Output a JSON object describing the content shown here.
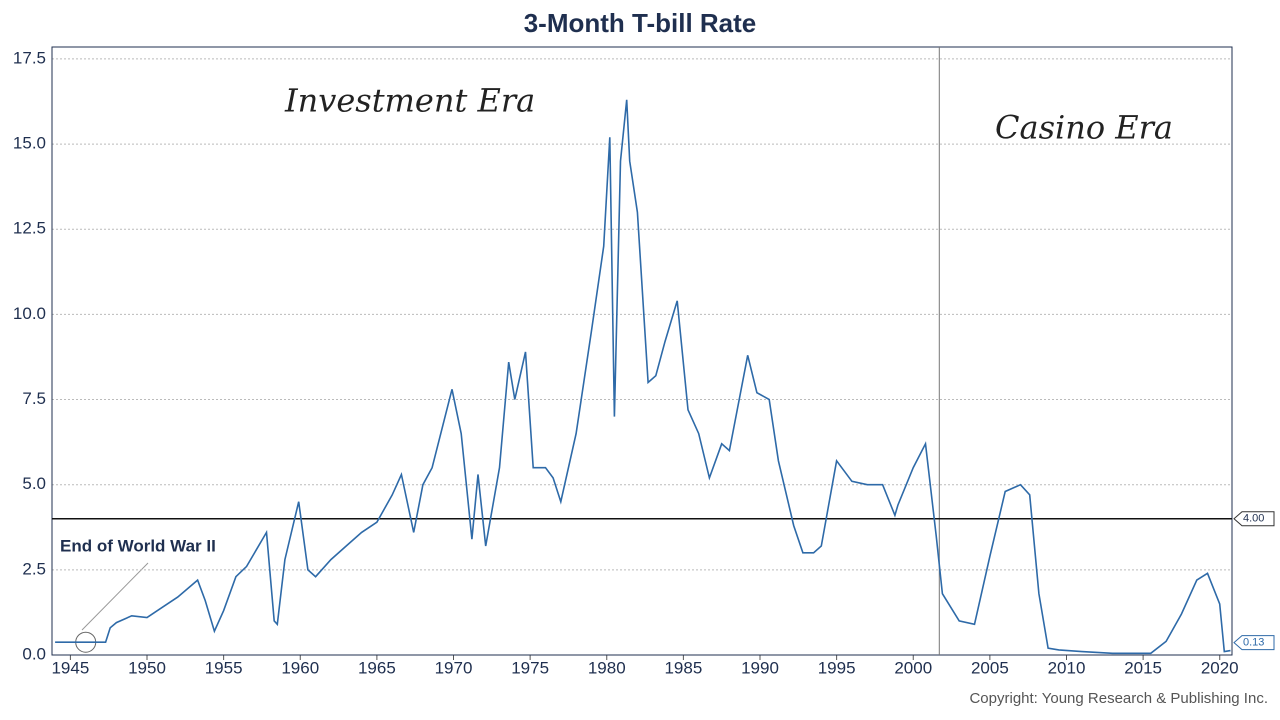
{
  "chart_data": {
    "type": "line",
    "title": "3-Month T-bill Rate",
    "annotations": [
      "Investment Era",
      "Casino Era",
      "End of World War II"
    ],
    "copyright": "Copyright: Young Research & Publishing Inc.",
    "xlim": [
      1943.8,
      2020.8
    ],
    "ylim": [
      0,
      17.85
    ],
    "xticks": [
      1945,
      1950,
      1955,
      1960,
      1965,
      1970,
      1975,
      1980,
      1985,
      1990,
      1995,
      2000,
      2005,
      2010,
      2015,
      2020
    ],
    "yticks": [
      {
        "value": 0,
        "label": "0.0"
      },
      2.5,
      {
        "value": 5,
        "label": "5.0"
      },
      7.5,
      {
        "value": 10,
        "label": "10.0"
      },
      12.5,
      {
        "value": 15,
        "label": "15.0"
      },
      17.5
    ],
    "grid": true,
    "reference_line": {
      "value": 4,
      "label": "4.00"
    },
    "divider_x": 2001.7,
    "event_x": 1946,
    "x": [
      1944.0,
      1947.3,
      1947.6,
      1948,
      1949,
      1950,
      1951,
      1952,
      1953.3,
      1953.8,
      1954.4,
      1955,
      1955.8,
      1956.5,
      1957.8,
      1958.3,
      1958.5,
      1959,
      1959.9,
      1960.5,
      1961,
      1962,
      1963,
      1964,
      1965,
      1966,
      1966.6,
      1967.4,
      1968,
      1968.6,
      1969.9,
      1970.5,
      1971.2,
      1971.6,
      1972.1,
      1973,
      1973.6,
      1974,
      1974.7,
      1975.2,
      1976,
      1976.5,
      1977,
      1978,
      1979,
      1979.8,
      1980.2,
      1980.5,
      1980.9,
      1981.3,
      1981.5,
      1982,
      1982.7,
      1983.2,
      1983.8,
      1984.6,
      1985.3,
      1986,
      1986.7,
      1987.5,
      1988,
      1989.2,
      1989.8,
      1990.6,
      1991.2,
      1992.2,
      1992.8,
      1993.5,
      1994,
      1995,
      1996,
      1997,
      1998,
      1998.8,
      1999,
      2000,
      2000.8,
      2001.5,
      2001.9,
      2003,
      2004,
      2005,
      2006,
      2007,
      2007.6,
      2008.2,
      2008.8,
      2009.5,
      2011,
      2013,
      2015.5,
      2016.5,
      2017.5,
      2018.5,
      2019.2,
      2020,
      2020.3,
      2020.7
    ],
    "series": [
      {
        "name": "3-Month T-bill Rate",
        "color": "#2e6aa8",
        "values": [
          0.375,
          0.375,
          0.8,
          0.95,
          1.15,
          1.1,
          1.4,
          1.7,
          2.2,
          1.6,
          0.7,
          1.3,
          2.3,
          2.6,
          3.6,
          1.0,
          0.9,
          2.8,
          4.5,
          2.5,
          2.3,
          2.8,
          3.2,
          3.6,
          3.9,
          4.7,
          5.3,
          3.6,
          5.0,
          5.5,
          7.8,
          6.5,
          3.4,
          5.3,
          3.2,
          5.5,
          8.6,
          7.5,
          8.9,
          5.5,
          5.5,
          5.2,
          4.5,
          6.5,
          9.5,
          12.0,
          15.2,
          7.0,
          14.5,
          16.3,
          14.5,
          13.0,
          8.0,
          8.2,
          9.2,
          10.4,
          7.2,
          6.5,
          5.2,
          6.2,
          6.0,
          8.8,
          7.7,
          7.5,
          5.7,
          3.8,
          3.0,
          3.0,
          3.2,
          5.7,
          5.1,
          5.0,
          5.0,
          4.1,
          4.4,
          5.5,
          6.2,
          3.5,
          1.8,
          1.0,
          0.9,
          2.9,
          4.8,
          5.0,
          4.7,
          1.8,
          0.2,
          0.15,
          0.1,
          0.05,
          0.05,
          0.4,
          1.2,
          2.2,
          2.4,
          1.5,
          0.1,
          0.13
        ],
        "last_label": "0.13"
      }
    ]
  }
}
